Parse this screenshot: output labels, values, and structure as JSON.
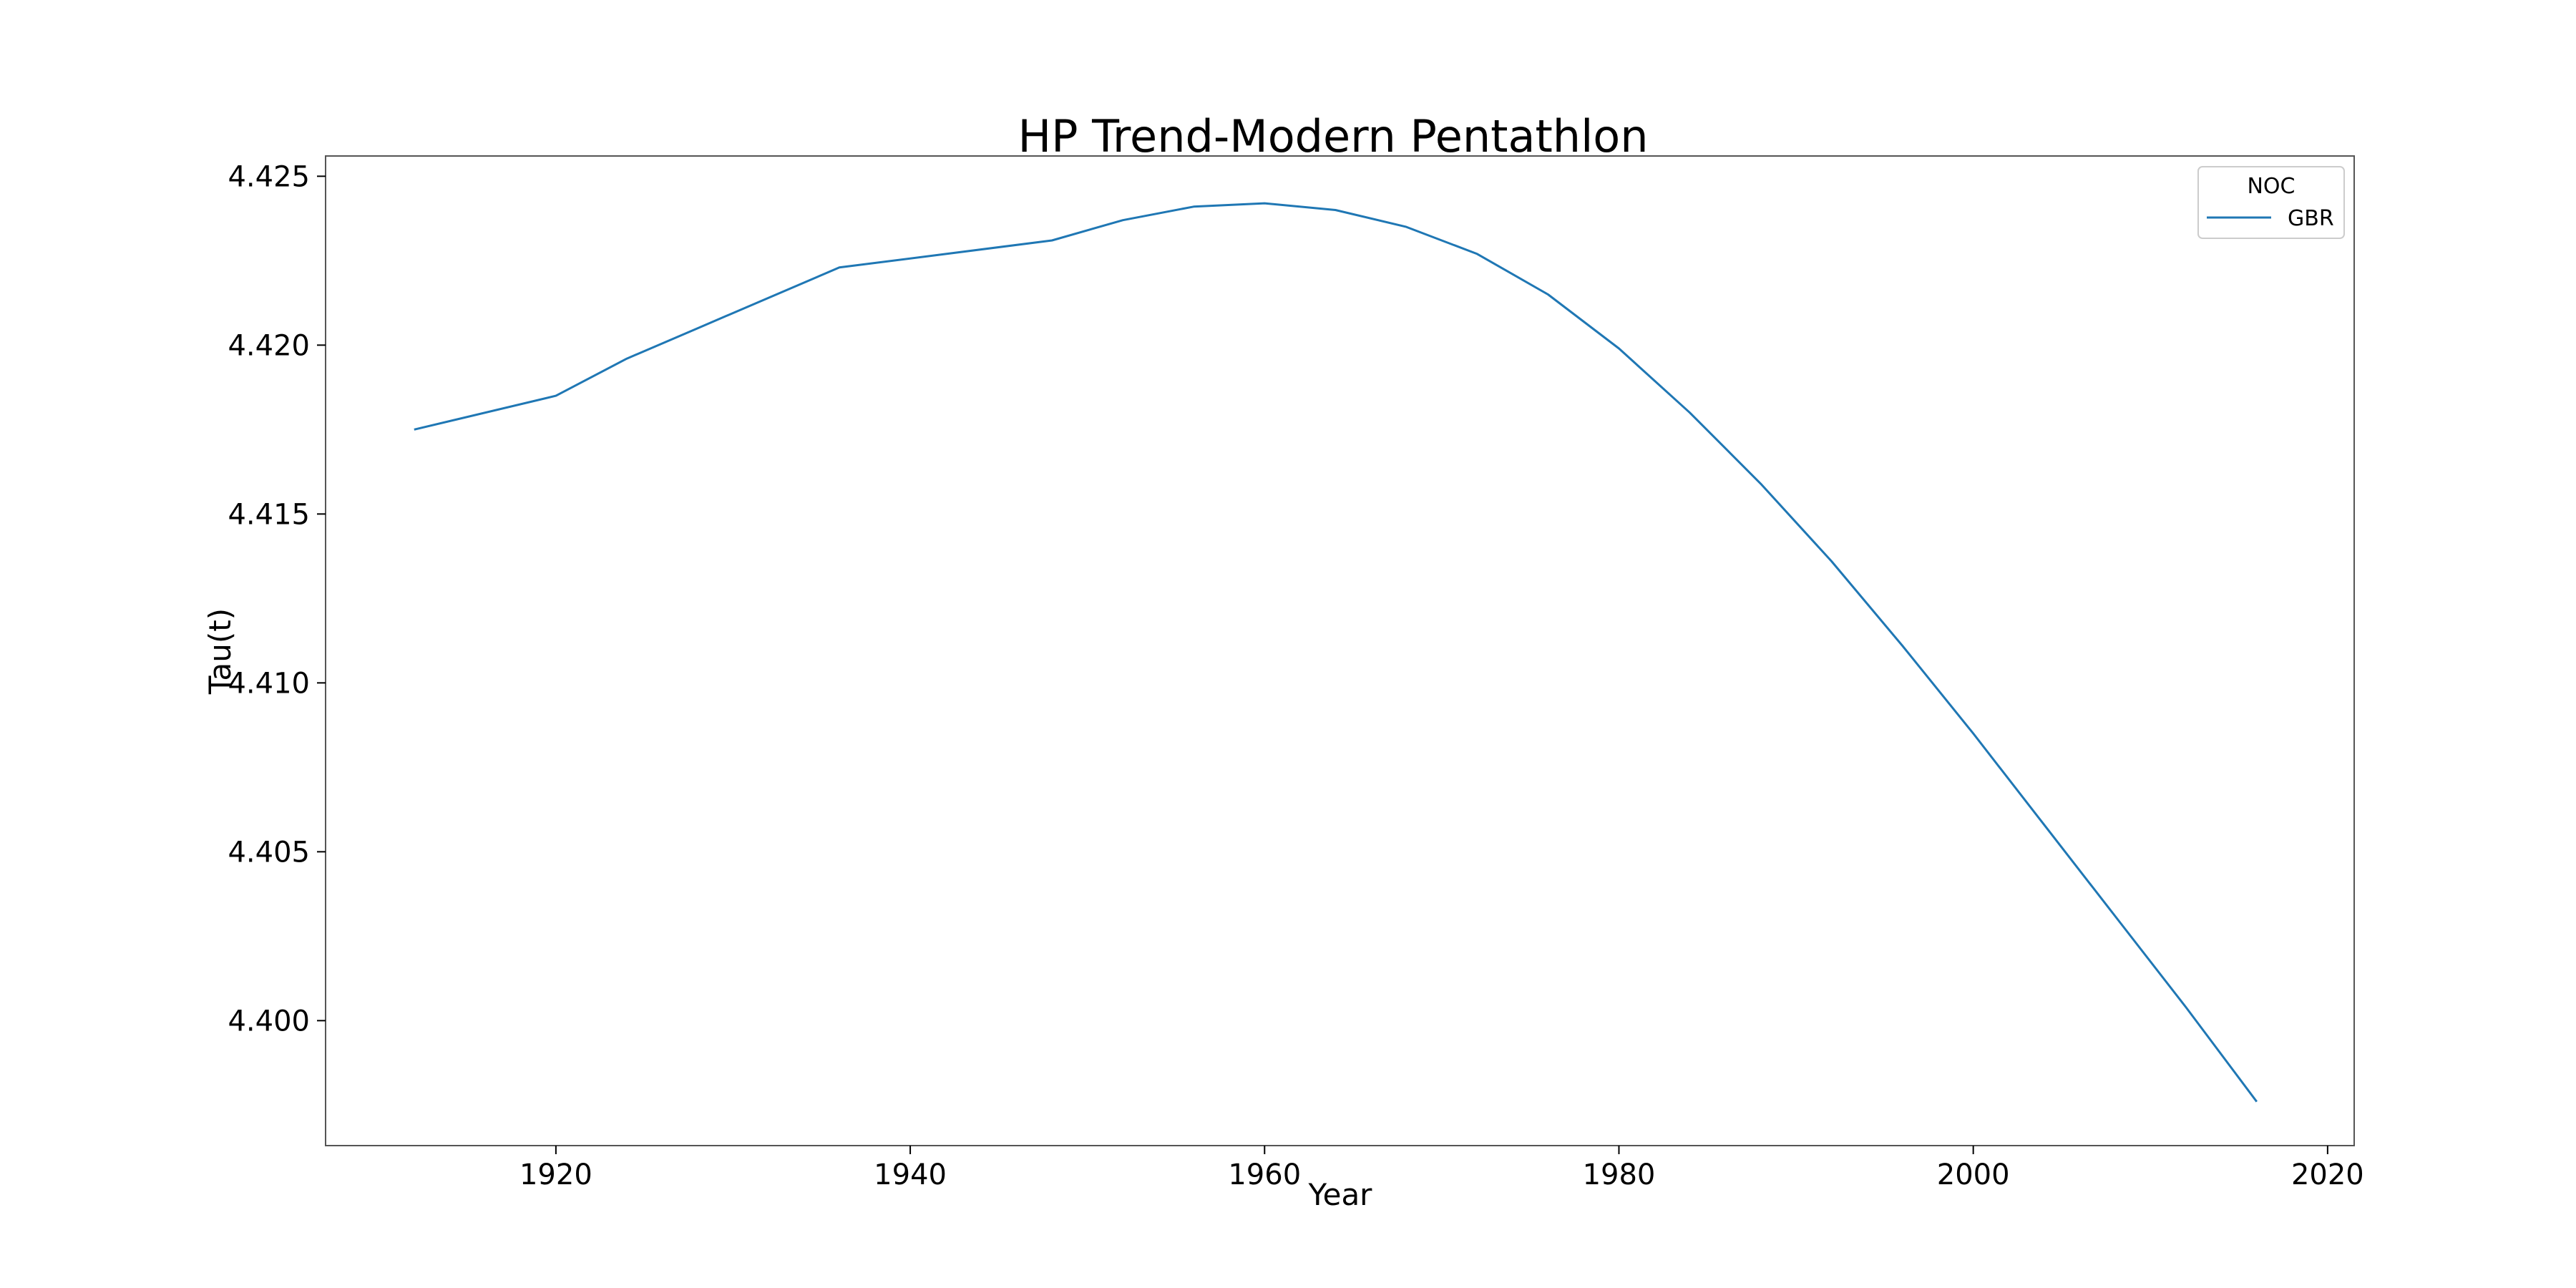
{
  "chart_data": {
    "type": "line",
    "title": "HP Trend-Modern Pentathlon",
    "xlabel": "Year",
    "ylabel": "Tau(t)",
    "xlim": [
      1907,
      2021.5
    ],
    "ylim": [
      4.3963,
      4.4256
    ],
    "x_ticks": [
      1920,
      1940,
      1960,
      1980,
      2000,
      2020
    ],
    "y_ticks": [
      4.4,
      4.405,
      4.41,
      4.415,
      4.42,
      4.425
    ],
    "x_tick_labels": [
      "1920",
      "1940",
      "1960",
      "1980",
      "2000",
      "2020"
    ],
    "y_tick_labels": [
      "4.400",
      "4.405",
      "4.410",
      "4.415",
      "4.420",
      "4.425"
    ],
    "grid": false,
    "legend": {
      "title": "NOC",
      "position": "top-right"
    },
    "series": [
      {
        "name": "GBR",
        "color": "#1f77b4",
        "x": [
          1912,
          1920,
          1924,
          1928,
          1932,
          1936,
          1948,
          1952,
          1956,
          1960,
          1964,
          1968,
          1972,
          1976,
          1980,
          1984,
          1988,
          1992,
          1996,
          2000,
          2004,
          2008,
          2012,
          2016
        ],
        "y": [
          4.4175,
          4.4185,
          4.4196,
          4.4205,
          4.4214,
          4.4223,
          4.4231,
          4.4237,
          4.4241,
          4.4242,
          4.424,
          4.4235,
          4.4227,
          4.4215,
          4.4199,
          4.418,
          4.4159,
          4.4136,
          4.4111,
          4.4085,
          4.4058,
          4.4031,
          4.4004,
          4.3976
        ]
      }
    ]
  }
}
